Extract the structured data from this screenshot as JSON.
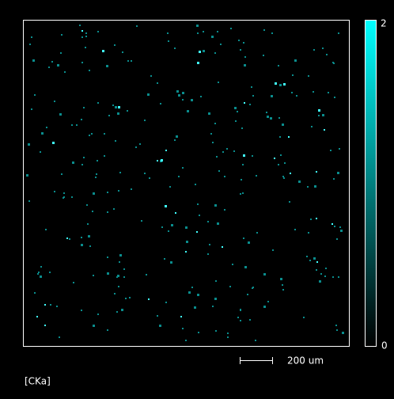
{
  "map": {
    "element_label": "[CKa]"
  },
  "colorbar": {
    "max": 2,
    "min": 0
  },
  "scale_bar": {
    "label": "200 um"
  }
}
